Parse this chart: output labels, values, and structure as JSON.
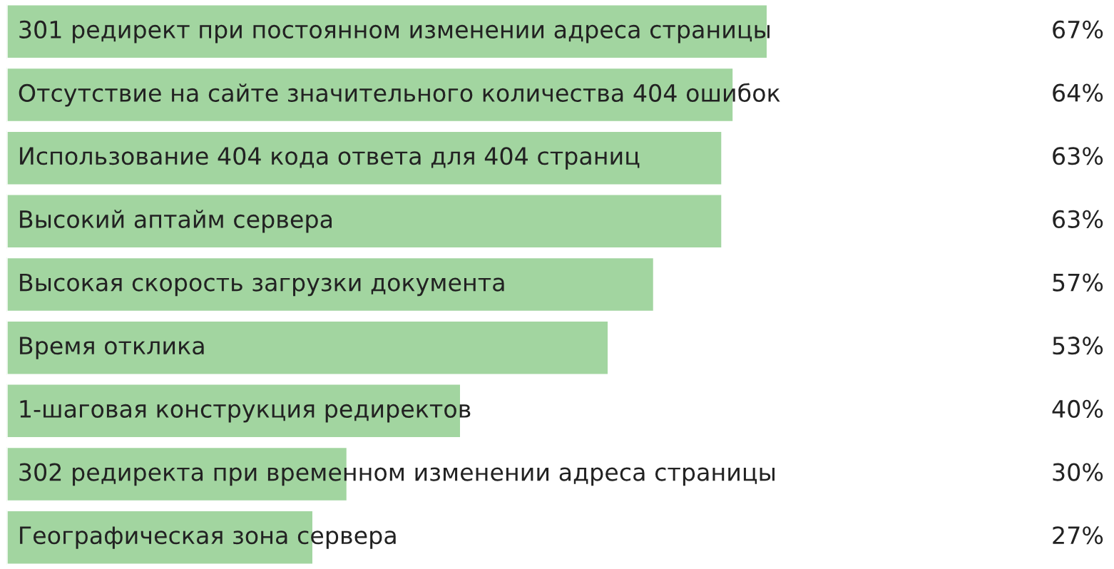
{
  "chart_data": {
    "type": "bar",
    "orientation": "horizontal",
    "categories": [
      "301 редирект при постоянном изменении адреса страницы",
      "Отсутствие на сайте значительного количества 404 ошибок",
      "Использование 404 кода ответа для 404 страниц",
      "Высокий аптайм сервера",
      "Высокая скорость загрузки документа",
      "Время отклика",
      "1-шаговая конструкция редиректов",
      "302 редиректа при временном изменении адреса страницы",
      "Географическая зона сервера"
    ],
    "values": [
      67,
      64,
      63,
      63,
      57,
      53,
      40,
      30,
      27
    ],
    "value_labels": [
      "67%",
      "64%",
      "63%",
      "63%",
      "57%",
      "53%",
      "40%",
      "30%",
      "27%"
    ],
    "color": "#a2d5a0"
  }
}
